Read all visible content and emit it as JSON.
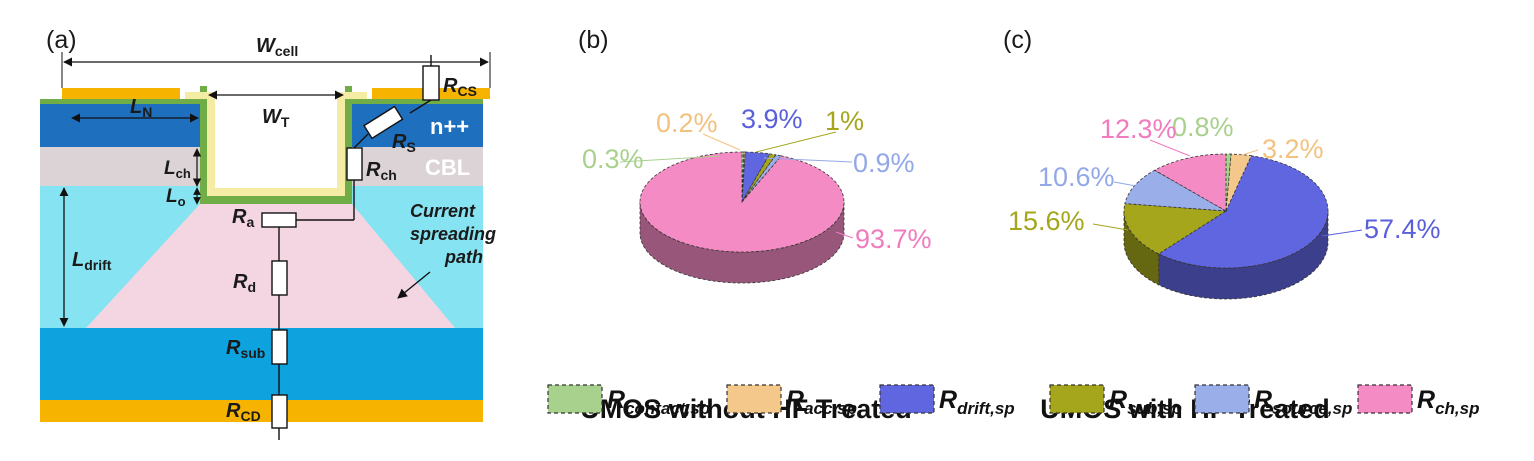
{
  "panels": {
    "a": "(a)",
    "b": "(b)",
    "c": "(c)"
  },
  "schematic": {
    "labels": {
      "w_cell": "W",
      "w_cell_sub": "cell",
      "w_t": "W",
      "w_t_sub": "T",
      "l_n": "L",
      "l_n_sub": "N",
      "l_ch": "L",
      "l_ch_sub": "ch",
      "l_o": "L",
      "l_o_sub": "o",
      "l_drift": "L",
      "l_drift_sub": "drift",
      "r_cs": "R",
      "r_cs_sub": "CS",
      "r_s": "R",
      "r_s_sub": "S",
      "r_ch": "R",
      "r_ch_sub": "ch",
      "r_a": "R",
      "r_a_sub": "a",
      "r_d": "R",
      "r_d_sub": "d",
      "r_sub": "R",
      "r_sub_sub": "sub",
      "r_cd": "R",
      "r_cd_sub": "CD",
      "n_pp": "n++",
      "cbl": "CBL",
      "current_line1": "Current",
      "current_line2": "spreading",
      "current_line3": "path"
    },
    "colors": {
      "metal": "#f6b400",
      "green": "#70ad47",
      "oxide": "#f4eca4",
      "npp": "#1f6fbf",
      "cbl": "#dcd3d6",
      "drift": "#86e3f1",
      "spread": "#f4d6e2",
      "substrate": "#0ea3de"
    }
  },
  "chart_data": [
    {
      "type": "pie",
      "title": "UMOS without HF Treated",
      "slices": [
        {
          "legend": "contact",
          "value": 0.3,
          "label": "0.3%"
        },
        {
          "legend": "acc",
          "value": 0.2,
          "label": "0.2%"
        },
        {
          "legend": "drift",
          "value": 3.9,
          "label": "3.9%"
        },
        {
          "legend": "sub",
          "value": 1,
          "label": "1%"
        },
        {
          "legend": "source",
          "value": 0.9,
          "label": "0.9%"
        },
        {
          "legend": "ch",
          "value": 93.7,
          "label": "93.7%"
        }
      ]
    },
    {
      "type": "pie",
      "title": "UMOS with HF Treated",
      "slices": [
        {
          "legend": "contact",
          "value": 0.8,
          "label": "0.8%"
        },
        {
          "legend": "acc",
          "value": 3.2,
          "label": "3.2%"
        },
        {
          "legend": "drift",
          "value": 57.4,
          "label": "57.4%"
        },
        {
          "legend": "sub",
          "value": 15.6,
          "label": "15.6%"
        },
        {
          "legend": "source",
          "value": 10.6,
          "label": "10.6%"
        },
        {
          "legend": "ch",
          "value": 12.3,
          "label": "12.3%"
        }
      ]
    }
  ],
  "legend": [
    {
      "key": "contact",
      "symbol": "R",
      "sub": "contact,sp",
      "color": "#a9d18e",
      "text_color": "#a9d18e"
    },
    {
      "key": "acc",
      "symbol": "R",
      "sub": "acc,sp",
      "color": "#f4c78b",
      "text_color": "#f2c27e"
    },
    {
      "key": "drift",
      "symbol": "R",
      "sub": "drift,sp",
      "color": "#6066e0",
      "text_color": "#5a5fdc"
    },
    {
      "key": "sub",
      "symbol": "R",
      "sub": "sub,sp",
      "color": "#a5a61c",
      "text_color": "#a5a61c"
    },
    {
      "key": "source",
      "symbol": "R",
      "sub": "source,sp",
      "color": "#9aaeea",
      "text_color": "#93a8e6"
    },
    {
      "key": "ch",
      "symbol": "R",
      "sub": "ch,sp",
      "color": "#f58bc4",
      "text_color": "#f07bbf"
    }
  ]
}
